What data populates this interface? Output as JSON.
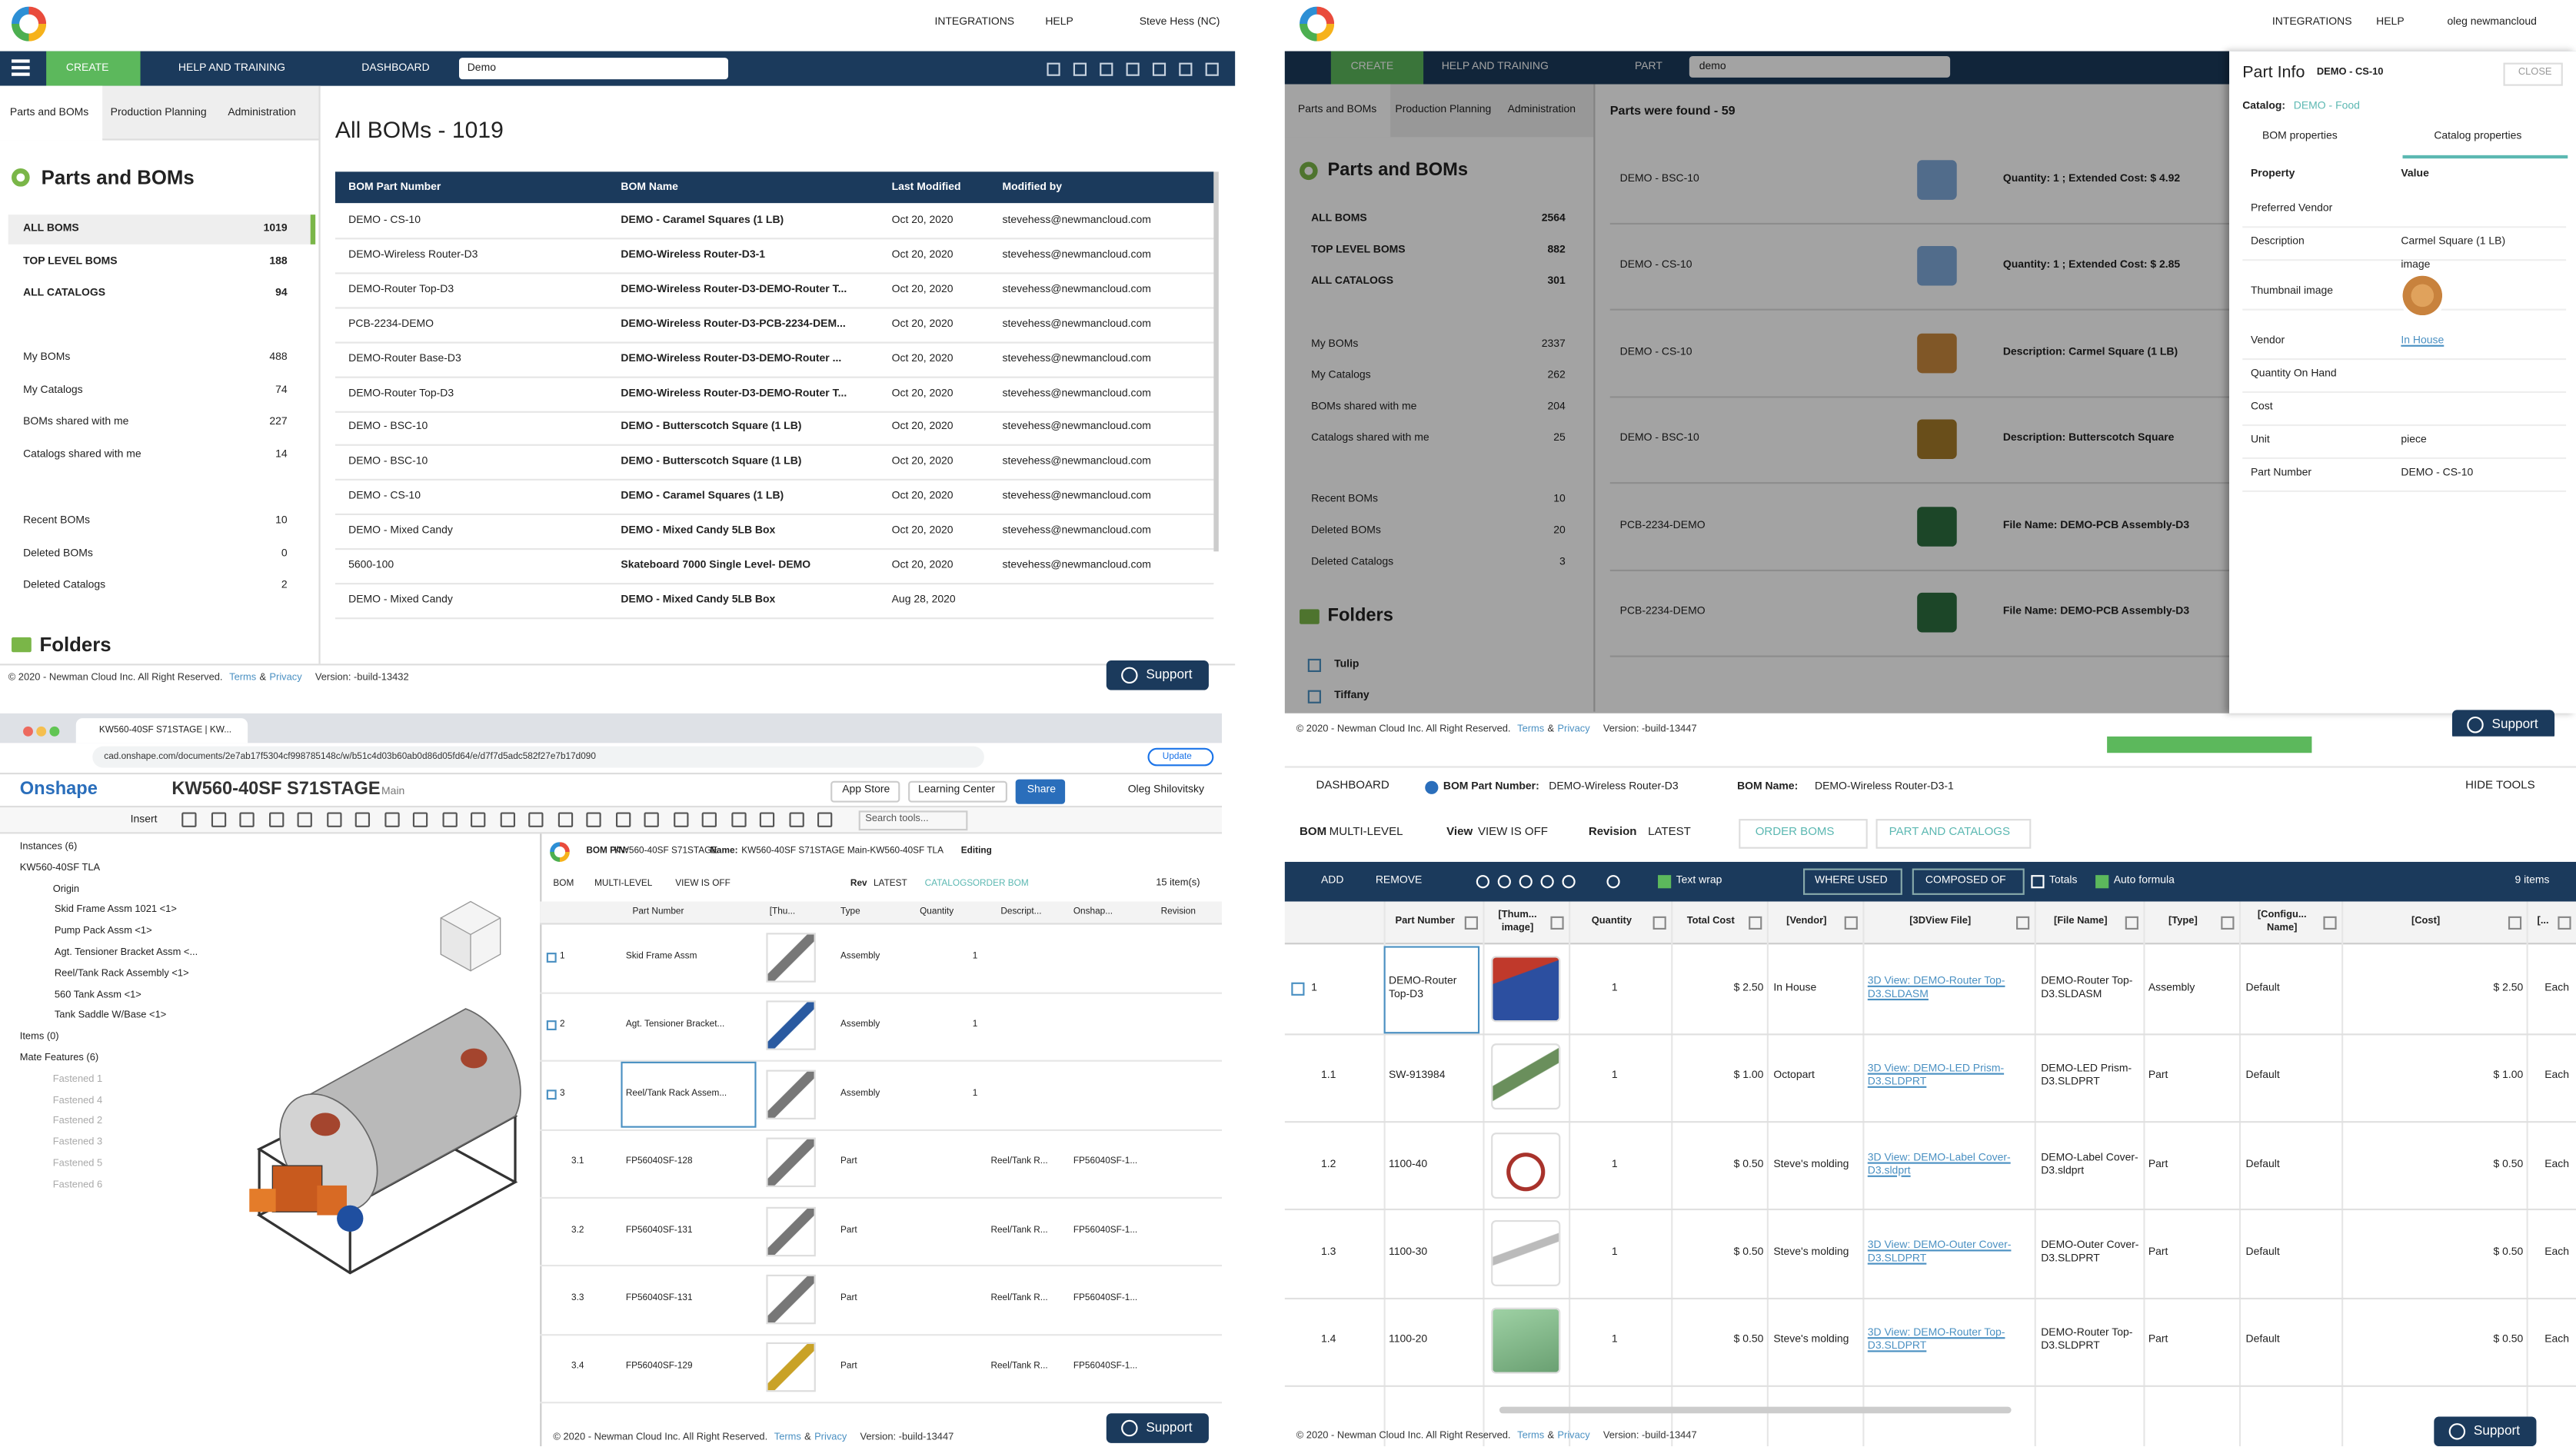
{
  "bom_list": {
    "nav": [
      "INTEGRATIONS",
      "HELP",
      "Steve Hess (NC)"
    ],
    "toolbar": {
      "create": "CREATE",
      "help": "HELP AND TRAINING",
      "dashboard": "DASHBOARD",
      "search": "Demo"
    },
    "tabs": [
      "Parts and BOMs",
      "Production Planning",
      "Administration"
    ],
    "sidebar": {
      "title": "Parts and BOMs",
      "folders": "Folders",
      "groups": [
        [
          {
            "label": "ALL BOMS",
            "count": 1019
          },
          {
            "label": "TOP LEVEL BOMS",
            "count": 188
          },
          {
            "label": "ALL CATALOGS",
            "count": 94
          }
        ],
        [
          {
            "label": "My BOMs",
            "count": 488
          },
          {
            "label": "My Catalogs",
            "count": 74
          },
          {
            "label": "BOMs shared with me",
            "count": 227
          },
          {
            "label": "Catalogs shared with me",
            "count": 14
          }
        ],
        [
          {
            "label": "Recent BOMs",
            "count": 10
          },
          {
            "label": "Deleted BOMs",
            "count": 0
          },
          {
            "label": "Deleted Catalogs",
            "count": 2
          }
        ]
      ]
    },
    "heading": "All BOMs - 1019",
    "table": {
      "columns": [
        "BOM Part Number",
        "BOM Name",
        "Last Modified",
        "Modified by"
      ],
      "rows": [
        [
          "DEMO - CS-10",
          "DEMO - Caramel Squares (1 LB)",
          "Oct 20, 2020",
          "stevehess@newmancloud.com"
        ],
        [
          "DEMO-Wireless Router-D3",
          "DEMO-Wireless Router-D3-1",
          "Oct 20, 2020",
          "stevehess@newmancloud.com"
        ],
        [
          "DEMO-Router Top-D3",
          "DEMO-Wireless Router-D3-DEMO-Router T...",
          "Oct 20, 2020",
          "stevehess@newmancloud.com"
        ],
        [
          "PCB-2234-DEMO",
          "DEMO-Wireless Router-D3-PCB-2234-DEM...",
          "Oct 20, 2020",
          "stevehess@newmancloud.com"
        ],
        [
          "DEMO-Router Base-D3",
          "DEMO-Wireless Router-D3-DEMO-Router ...",
          "Oct 20, 2020",
          "stevehess@newmancloud.com"
        ],
        [
          "DEMO-Router Top-D3",
          "DEMO-Wireless Router-D3-DEMO-Router T...",
          "Oct 20, 2020",
          "stevehess@newmancloud.com"
        ],
        [
          "DEMO - BSC-10",
          "DEMO - Butterscotch Square (1 LB)",
          "Oct 20, 2020",
          "stevehess@newmancloud.com"
        ],
        [
          "DEMO - BSC-10",
          "DEMO - Butterscotch Square (1 LB)",
          "Oct 20, 2020",
          "stevehess@newmancloud.com"
        ],
        [
          "DEMO - CS-10",
          "DEMO - Caramel Squares (1 LB)",
          "Oct 20, 2020",
          "stevehess@newmancloud.com"
        ],
        [
          "DEMO - Mixed Candy",
          "DEMO - Mixed Candy 5LB Box",
          "Oct 20, 2020",
          "stevehess@newmancloud.com"
        ],
        [
          "5600-100",
          "Skateboard 7000 Single Level- DEMO",
          "Oct 20, 2020",
          "stevehess@newmancloud.com"
        ],
        [
          "DEMO - Mixed Candy",
          "DEMO - Mixed Candy 5LB Box",
          "Aug 28, 2020"
        ]
      ]
    },
    "footer": {
      "copyright": "© 2020 - Newman Cloud Inc. All Right Reserved.",
      "terms": "Terms",
      "amp": "&",
      "privacy": "Privacy",
      "version": "Version: -build-13432",
      "support": "Support"
    }
  },
  "part_search": {
    "nav": [
      "INTEGRATIONS",
      "HELP",
      "oleg newmancloud"
    ],
    "toolbar": {
      "create": "CREATE",
      "help": "HELP AND TRAINING",
      "part": "PART",
      "search": "demo"
    },
    "tabs": [
      "Parts and BOMs",
      "Production Planning",
      "Administration"
    ],
    "sidebar": {
      "title": "Parts and BOMs",
      "folders": "Folders",
      "folder_items": [
        "Tulip",
        "Tiffany"
      ],
      "groups": [
        [
          {
            "label": "ALL BOMS",
            "count": 2564
          },
          {
            "label": "TOP LEVEL BOMS",
            "count": 882
          },
          {
            "label": "ALL CATALOGS",
            "count": 301
          }
        ],
        [
          {
            "label": "My BOMs",
            "count": 2337
          },
          {
            "label": "My Catalogs",
            "count": 262
          },
          {
            "label": "BOMs shared with me",
            "count": 204
          },
          {
            "label": "Catalogs shared with me",
            "count": 25
          }
        ],
        [
          {
            "label": "Recent BOMs",
            "count": 10
          },
          {
            "label": "Deleted BOMs",
            "count": 20
          },
          {
            "label": "Deleted Catalogs",
            "count": 3
          }
        ]
      ]
    },
    "heading": "Parts were found - 59",
    "results": [
      {
        "part": "DEMO - BSC-10",
        "detail": "Quantity: 1 ; Extended Cost: $ 4.92"
      },
      {
        "part": "DEMO - CS-10",
        "detail": "Quantity: 1 ; Extended Cost: $ 2.85"
      },
      {
        "part": "DEMO - CS-10",
        "detail": "Description: Carmel Square (1 LB)"
      },
      {
        "part": "DEMO - BSC-10",
        "detail": "Description: Butterscotch Square"
      },
      {
        "part": "PCB-2234-DEMO",
        "detail": "File Name: DEMO-PCB Assembly-D3"
      },
      {
        "part": "PCB-2234-DEMO",
        "detail": "File Name: DEMO-PCB Assembly-D3"
      }
    ],
    "part_info": {
      "title": "Part Info",
      "part": "DEMO - CS-10",
      "close": "CLOSE",
      "catalog_label": "Catalog:",
      "catalog": "DEMO - Food",
      "tabs": [
        "BOM properties",
        "Catalog properties"
      ],
      "columns": [
        "Property",
        "Value"
      ],
      "rows": [
        {
          "property": "Preferred Vendor"
        },
        {
          "property": "Description",
          "value": "Carmel Square (1 LB)"
        },
        {
          "property": "Thumbnail image",
          "value": "image"
        },
        {
          "property": "Vendor",
          "value": "In House"
        },
        {
          "property": "Quantity On Hand"
        },
        {
          "property": "Cost"
        },
        {
          "property": "Unit",
          "value": "piece"
        },
        {
          "property": "Part Number",
          "value": "DEMO - CS-10"
        }
      ]
    },
    "footer": {
      "copyright": "© 2020 - Newman Cloud Inc. All Right Reserved.",
      "terms": "Terms",
      "amp": "&",
      "privacy": "Privacy",
      "version": "Version: -build-13447",
      "support": "Support"
    }
  },
  "onshape": {
    "browser": {
      "tab": "KW560-40SF S71STAGE | KW...",
      "url": "cad.onshape.com/documents/2e7ab17f5304cf998785148c/w/b51c4d03b60ab0d86d05fd64/e/d7f7d5adc582f27e7b17d090",
      "update": "Update"
    },
    "header": {
      "brand": "Onshape",
      "document": "KW560-40SF S71STAGE",
      "branch": "Main",
      "app_store": "App Store",
      "learning": "Learning Center",
      "share": "Share",
      "user": "Oleg Shilovitsky",
      "insert": "Insert",
      "search": "Search tools..."
    },
    "tree": [
      "Instances (6)",
      "KW560-40SF TLA",
      "Origin",
      "Skid Frame Assm 1021 <1>",
      "Pump Pack Assm <1>",
      "Agt. Tensioner Bracket Assm <...",
      "Reel/Tank Rack Assembly <1>",
      "560 Tank Assm <1>",
      "Tank Saddle W/Base <1>",
      "Items (0)",
      "Mate Features (6)",
      "Fastened 1",
      "Fastened 4",
      "Fastened 2",
      "Fastened 3",
      "Fastened 5",
      "Fastened 6"
    ],
    "bom": {
      "pn_label": "BOM P/N:",
      "pn": "KW560-40SF S71STAGE",
      "name_label": "Name:",
      "name": "KW560-40SF S71STAGE Main-KW560-40SF TLA",
      "status": "Editing",
      "controls": [
        "BOM",
        "MULTI-LEVEL",
        "VIEW IS OFF",
        "Rev",
        "LATEST",
        "CATALOGS",
        "ORDER BOM"
      ],
      "count": "15 item(s)",
      "columns": [
        "Part Number",
        "[Thu...",
        "Type",
        "Quantity",
        "Descript...",
        "Onshap...",
        "Revision"
      ],
      "rows": [
        {
          "n": "1",
          "pn": "Skid Frame Assm",
          "type": "Assembly",
          "qty": "1"
        },
        {
          "n": "2",
          "pn": "Agt. Tensioner Bracket...",
          "type": "Assembly",
          "qty": "1"
        },
        {
          "n": "3",
          "pn": "Reel/Tank Rack Assem...",
          "type": "Assembly",
          "qty": "1"
        },
        {
          "n": "3.1",
          "pn": "FP56040SF-128",
          "type": "Part",
          "desc": "Reel/Tank R...",
          "onshape": "FP56040SF-1..."
        },
        {
          "n": "3.2",
          "pn": "FP56040SF-131",
          "type": "Part",
          "desc": "Reel/Tank R...",
          "onshape": "FP56040SF-1..."
        },
        {
          "n": "3.3",
          "pn": "FP56040SF-131",
          "type": "Part",
          "desc": "Reel/Tank R...",
          "onshape": "FP56040SF-1..."
        },
        {
          "n": "3.4",
          "pn": "FP56040SF-129",
          "type": "Part",
          "desc": "Reel/Tank R...",
          "onshape": "FP56040SF-1..."
        }
      ]
    },
    "footer": {
      "copyright": "© 2020 - Newman Cloud Inc. All Right Reserved.",
      "terms": "Terms",
      "amp": "&",
      "privacy": "Privacy",
      "version": "Version: -build-13447",
      "support": "Support"
    }
  },
  "bom_editor": {
    "header": {
      "dashboard": "DASHBOARD",
      "pn_label": "BOM Part Number:",
      "pn": "DEMO-Wireless Router-D3",
      "name_label": "BOM Name:",
      "name": "DEMO-Wireless Router-D3-1",
      "hide": "HIDE TOOLS"
    },
    "controls": {
      "bom": "BOM",
      "level": "MULTI-LEVEL",
      "view": "View",
      "view_value": "VIEW IS OFF",
      "revision": "Revision",
      "revision_value": "LATEST",
      "order": "ORDER BOMS",
      "catalogs": "PART AND CATALOGS"
    },
    "toolbar": {
      "add": "ADD",
      "remove": "REMOVE",
      "wrap": "Text wrap",
      "where": "WHERE USED",
      "composed": "COMPOSED OF",
      "totals": "Totals",
      "formula": "Auto formula",
      "count": "9 items"
    },
    "columns": [
      "Part Number",
      "[Thum... image]",
      "Quantity",
      "Total Cost",
      "[Vendor]",
      "[3DView File]",
      "[File Name]",
      "[Type]",
      "[Configu... Name]",
      "[Cost]",
      "[..."
    ],
    "rows": [
      [
        "1",
        "DEMO-Router Top-D3",
        "1",
        "$ 2.50",
        "In House",
        "3D View: DEMO-Router Top-D3.SLDASM",
        "DEMO-Router Top-D3.SLDASM",
        "Assembly",
        "Default",
        "$ 2.50",
        "Each"
      ],
      [
        "1.1",
        "SW-913984",
        "1",
        "$ 1.00",
        "Octopart",
        "3D View: DEMO-LED Prism-D3.SLDPRT",
        "DEMO-LED Prism-D3.SLDPRT",
        "Part",
        "Default",
        "$ 1.00",
        "Each"
      ],
      [
        "1.2",
        "1100-40",
        "1",
        "$ 0.50",
        "Steve's molding",
        "3D View: DEMO-Label Cover-D3.sldprt",
        "DEMO-Label Cover-D3.sldprt",
        "Part",
        "Default",
        "$ 0.50",
        "Each"
      ],
      [
        "1.3",
        "1100-30",
        "1",
        "$ 0.50",
        "Steve's molding",
        "3D View: DEMO-Outer Cover-D3.SLDPRT",
        "DEMO-Outer Cover-D3.SLDPRT",
        "Part",
        "Default",
        "$ 0.50",
        "Each"
      ],
      [
        "1.4",
        "1100-20",
        "1",
        "$ 0.50",
        "Steve's molding",
        "3D View: DEMO-Router Top-D3.SLDPRT",
        "DEMO-Router Top-D3.SLDPRT",
        "Part",
        "Default",
        "$ 0.50",
        "Each"
      ]
    ],
    "footer": {
      "copyright": "© 2020 - Newman Cloud Inc. All Right Reserved.",
      "terms": "Terms",
      "amp": "&",
      "privacy": "Privacy",
      "version": "Version: -build-13447",
      "support": "Support"
    }
  }
}
